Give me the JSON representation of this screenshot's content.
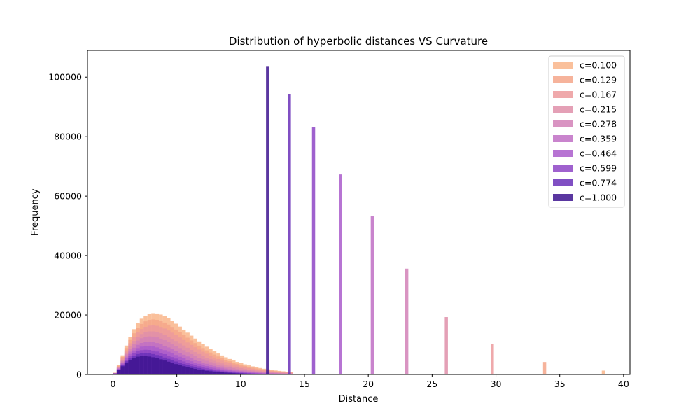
{
  "chart_data": {
    "type": "histogram",
    "title": "Distribution of hyperbolic distances VS Curvature",
    "xlabel": "Distance",
    "ylabel": "Frequency",
    "xlim": [
      -2,
      40.5
    ],
    "ylim": [
      0,
      109000
    ],
    "xticks": [
      0,
      5,
      10,
      15,
      20,
      25,
      30,
      35,
      40
    ],
    "yticks": [
      0,
      20000,
      40000,
      60000,
      80000,
      100000
    ],
    "grid": false,
    "legend": "top-right",
    "series": [
      {
        "name": "c=0.100",
        "color": "#f9b58a",
        "mode": 3.2,
        "peak": 20600,
        "spike_x": 38.4,
        "spike_y": 1300
      },
      {
        "name": "c=0.129",
        "color": "#f5a68a",
        "mode": 3.15,
        "peak": 18500,
        "spike_x": 33.8,
        "spike_y": 4200
      },
      {
        "name": "c=0.167",
        "color": "#ec9a9c",
        "mode": 3.1,
        "peak": 16500,
        "spike_x": 29.7,
        "spike_y": 10200
      },
      {
        "name": "c=0.215",
        "color": "#df8fa9",
        "mode": 3.0,
        "peak": 14500,
        "spike_x": 26.1,
        "spike_y": 19300
      },
      {
        "name": "c=0.278",
        "color": "#d281b7",
        "mode": 2.9,
        "peak": 12800,
        "spike_x": 23.0,
        "spike_y": 35600
      },
      {
        "name": "c=0.359",
        "color": "#c06ec4",
        "mode": 2.8,
        "peak": 11000,
        "spike_x": 20.3,
        "spike_y": 53200
      },
      {
        "name": "c=0.464",
        "color": "#aa5ccb",
        "mode": 2.7,
        "peak": 9600,
        "spike_x": 17.8,
        "spike_y": 67300
      },
      {
        "name": "c=0.599",
        "color": "#8e45c6",
        "mode": 2.6,
        "peak": 8300,
        "spike_x": 15.7,
        "spike_y": 83100
      },
      {
        "name": "c=0.774",
        "color": "#6a30b8",
        "mode": 2.5,
        "peak": 7200,
        "spike_x": 13.8,
        "spike_y": 94300
      },
      {
        "name": "c=1.000",
        "color": "#3d148f",
        "mode": 2.4,
        "peak": 6200,
        "spike_x": 12.1,
        "spike_y": 103500
      }
    ]
  }
}
